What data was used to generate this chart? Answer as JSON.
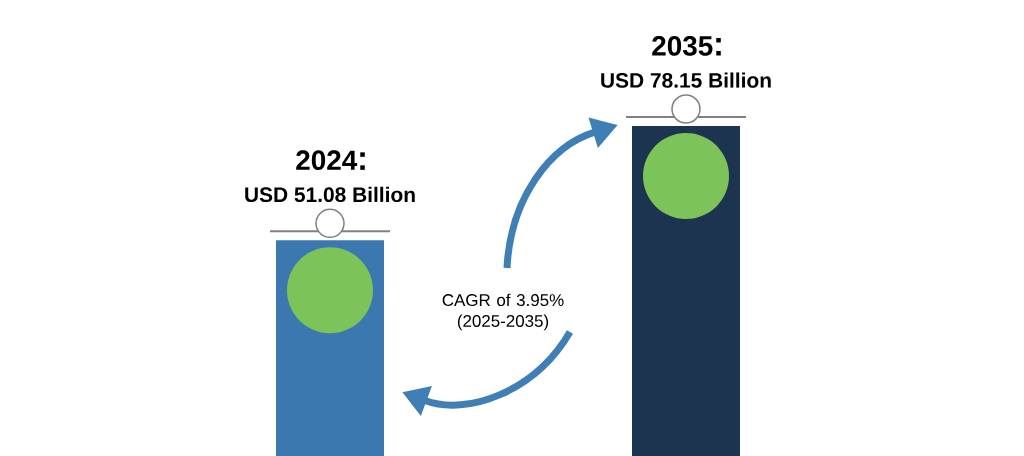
{
  "chart_data": {
    "type": "bar",
    "categories": [
      "2024",
      "2035"
    ],
    "values": [
      51.08,
      78.15
    ],
    "colors": [
      "#3b78b0",
      "#1d3450"
    ],
    "value_labels": [
      "USD 51.08 Billion",
      "USD 78.15 Billion"
    ],
    "annotations": [
      "CAGR of 3.95% (2025-2035)"
    ]
  }
}
